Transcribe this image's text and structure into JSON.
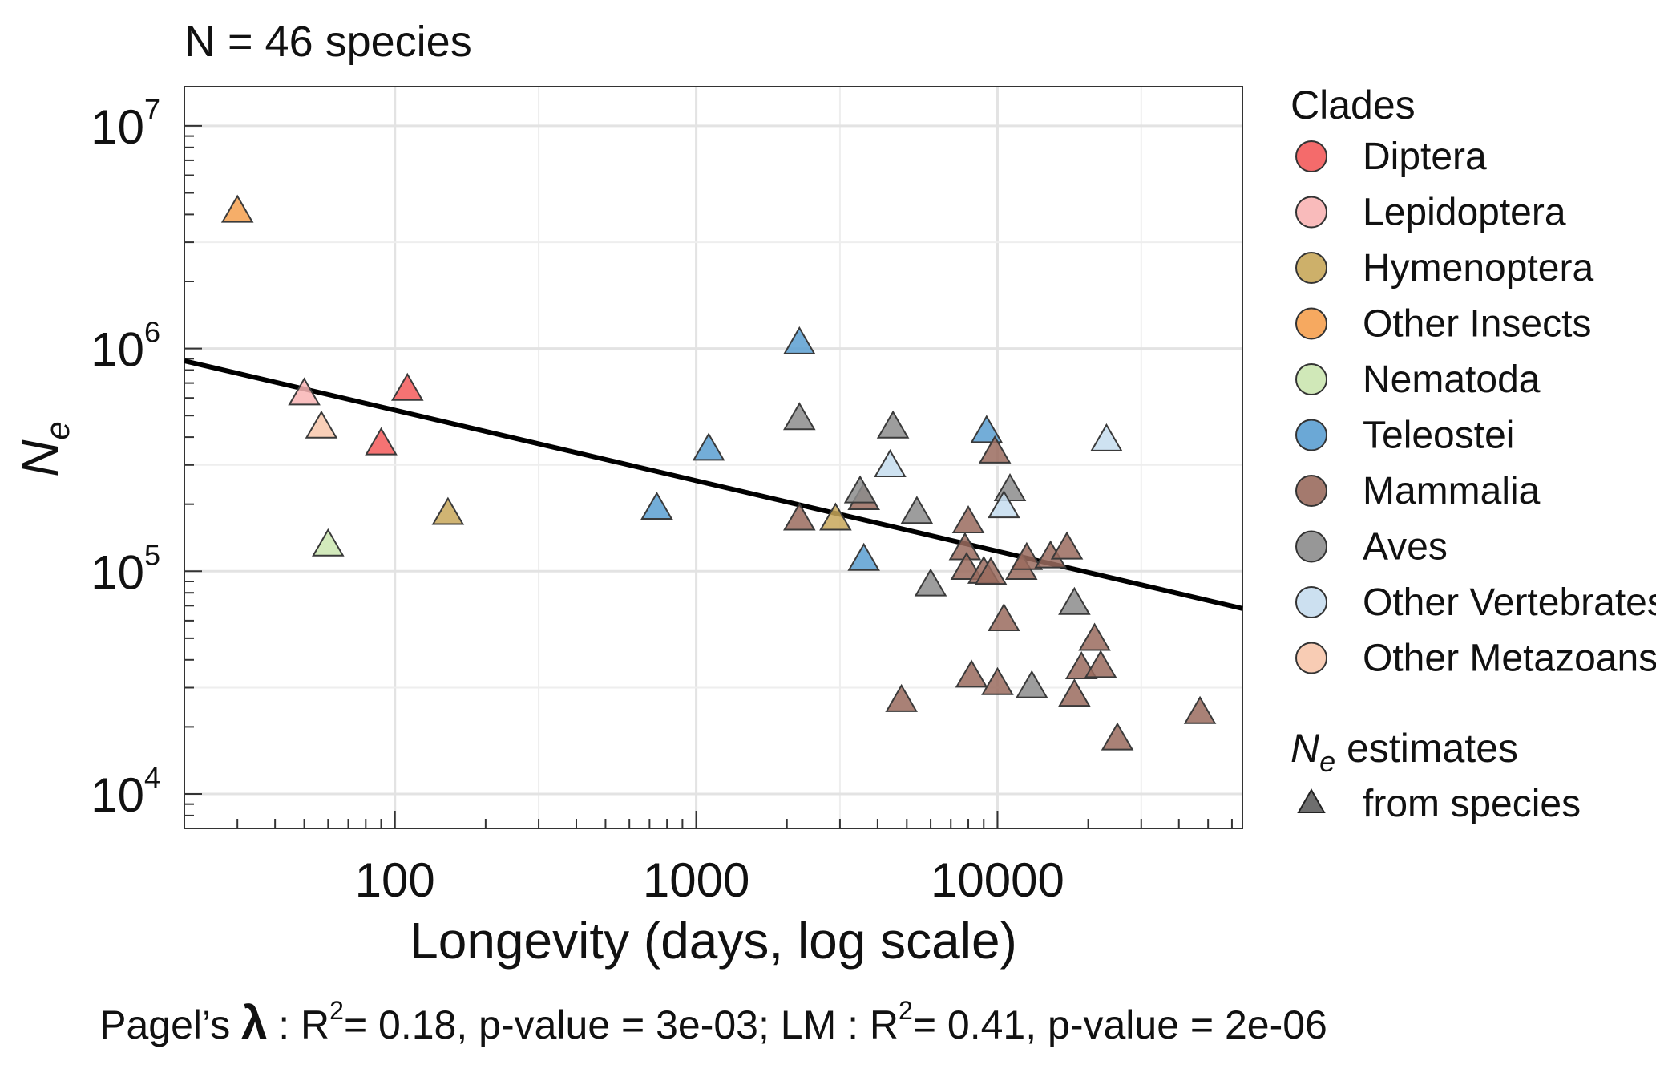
{
  "chart_data": {
    "type": "scatter",
    "title": "N = 46 species",
    "xlabel": "Longevity (days, log scale)",
    "ylabel_base": "N",
    "ylabel_sub": "e",
    "x_scale": "log",
    "y_scale": "log",
    "xlim": [
      20,
      65000
    ],
    "ylim": [
      7000,
      15000000
    ],
    "x_ticks": [
      {
        "value": 100,
        "label": "100"
      },
      {
        "value": 1000,
        "label": "1000"
      },
      {
        "value": 10000,
        "label": "10000"
      }
    ],
    "y_ticks": [
      {
        "value": 10000,
        "base": "10",
        "exp": "4"
      },
      {
        "value": 100000,
        "base": "10",
        "exp": "5"
      },
      {
        "value": 1000000,
        "base": "10",
        "exp": "6"
      },
      {
        "value": 10000000,
        "base": "10",
        "exp": "7"
      }
    ],
    "grid": true,
    "legend": {
      "position": "right",
      "clades_title": "Clades",
      "marker_title_base": "N",
      "marker_title_sub": "e",
      "marker_title_rest": " estimates",
      "marker_label": "from species",
      "marker_color": "#555555"
    },
    "clades": [
      {
        "name": "Diptera",
        "color": "#f35b5b"
      },
      {
        "name": "Lepidoptera",
        "color": "#f8b4b4"
      },
      {
        "name": "Hymenoptera",
        "color": "#c8a75a"
      },
      {
        "name": "Other Insects",
        "color": "#f5a04f"
      },
      {
        "name": "Nematoda",
        "color": "#cbe6b0"
      },
      {
        "name": "Teleostei",
        "color": "#5b9fd1"
      },
      {
        "name": "Mammalia",
        "color": "#9a6b5e"
      },
      {
        "name": "Aves",
        "color": "#8c8c8c"
      },
      {
        "name": "Other Vertebrates",
        "color": "#c6ddee"
      },
      {
        "name": "Other Metazoans",
        "color": "#f7c7ac"
      }
    ],
    "series": [
      {
        "clade": "Diptera",
        "points": [
          [
            110,
            650000
          ],
          [
            90,
            370000
          ]
        ]
      },
      {
        "clade": "Lepidoptera",
        "points": [
          [
            50,
            620000
          ]
        ]
      },
      {
        "clade": "Hymenoptera",
        "points": [
          [
            150,
            180000
          ],
          [
            2900,
            170000
          ]
        ]
      },
      {
        "clade": "Other Insects",
        "points": [
          [
            30,
            4100000
          ]
        ]
      },
      {
        "clade": "Nematoda",
        "points": [
          [
            60,
            130000
          ]
        ]
      },
      {
        "clade": "Teleostei",
        "points": [
          [
            2200,
            1050000
          ],
          [
            1100,
            350000
          ],
          [
            740,
            190000
          ],
          [
            3600,
            112000
          ],
          [
            9200,
            420000
          ]
        ]
      },
      {
        "clade": "Mammalia",
        "points": [
          [
            3600,
            210000
          ],
          [
            2200,
            170000
          ],
          [
            8000,
            165000
          ],
          [
            9800,
            340000
          ],
          [
            7800,
            125000
          ],
          [
            7900,
            102000
          ],
          [
            9000,
            98000
          ],
          [
            9500,
            97000
          ],
          [
            12000,
            102000
          ],
          [
            12500,
            113000
          ],
          [
            15000,
            115000
          ],
          [
            17000,
            126000
          ],
          [
            10500,
            60000
          ],
          [
            8200,
            33500
          ],
          [
            10000,
            31000
          ],
          [
            4800,
            26000
          ],
          [
            18000,
            27500
          ],
          [
            19000,
            36500
          ],
          [
            22000,
            37000
          ],
          [
            21000,
            49000
          ],
          [
            25000,
            17500
          ],
          [
            47000,
            23000
          ]
        ]
      },
      {
        "clade": "Aves",
        "points": [
          [
            2200,
            480000
          ],
          [
            4500,
            440000
          ],
          [
            3500,
            225000
          ],
          [
            5400,
            182000
          ],
          [
            11000,
            230000
          ],
          [
            6000,
            86000
          ],
          [
            18000,
            71000
          ],
          [
            13000,
            30000
          ]
        ]
      },
      {
        "clade": "Other Vertebrates",
        "points": [
          [
            4400,
            295000
          ],
          [
            10500,
            193000
          ],
          [
            23000,
            385000
          ]
        ]
      },
      {
        "clade": "Other Metazoans",
        "points": [
          [
            57,
            440000
          ]
        ]
      }
    ],
    "regression": {
      "type": "line",
      "x": [
        20,
        65000
      ],
      "y": [
        880000,
        68000
      ],
      "color": "#000000"
    },
    "caption": {
      "lambda_prefix": "Pagel’s ",
      "lambda_symbol": "λ",
      "part1": " : R",
      "sup1": "2",
      "part2": "= 0.18, p-value = 3e-03; LM : R",
      "sup2": "2",
      "part3": "= 0.41, p-value = 2e-06"
    }
  }
}
